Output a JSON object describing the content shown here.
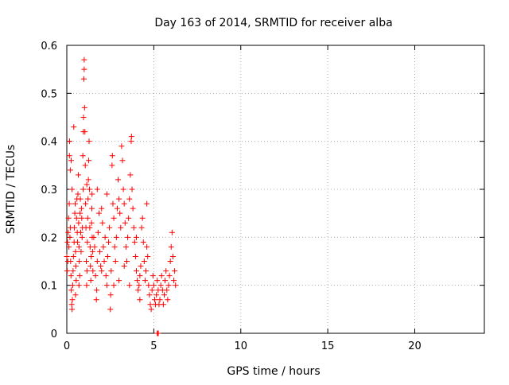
{
  "chart_data": {
    "type": "scatter",
    "title": "Day 163 of 2014, SRMTID for receiver alba",
    "xlabel": "GPS time / hours",
    "ylabel": "SRMTID / TECUs",
    "xlim": [
      0,
      24
    ],
    "ylim": [
      0,
      0.6
    ],
    "xticks": [
      0,
      5,
      10,
      15,
      20
    ],
    "xtick_labels": [
      "0",
      "5",
      "10",
      "15",
      "20"
    ],
    "yticks": [
      0,
      0.1,
      0.2,
      0.3,
      0.4,
      0.5,
      0.6
    ],
    "ytick_labels": [
      "0",
      "0.1",
      "0.2",
      "0.3",
      "0.4",
      "0.5",
      "0.6"
    ],
    "grid": true,
    "marker": "+",
    "series": [
      {
        "name": "SRMTID",
        "color": "#ff0000",
        "points": [
          [
            0.0,
            0.16
          ],
          [
            0.02,
            0.13
          ],
          [
            0.04,
            0.19
          ],
          [
            0.06,
            0.15
          ],
          [
            0.08,
            0.21
          ],
          [
            0.1,
            0.24
          ],
          [
            0.12,
            0.18
          ],
          [
            0.14,
            0.27
          ],
          [
            0.15,
            0.37
          ],
          [
            0.16,
            0.4
          ],
          [
            0.18,
            0.2
          ],
          [
            0.2,
            0.22
          ],
          [
            0.2,
            0.34
          ],
          [
            0.22,
            0.15
          ],
          [
            0.24,
            0.12
          ],
          [
            0.25,
            0.36
          ],
          [
            0.26,
            0.09
          ],
          [
            0.28,
            0.06
          ],
          [
            0.3,
            0.05
          ],
          [
            0.32,
            0.07
          ],
          [
            0.34,
            0.1
          ],
          [
            0.36,
            0.13
          ],
          [
            0.38,
            0.16
          ],
          [
            0.4,
            0.43
          ],
          [
            0.42,
            0.19
          ],
          [
            0.44,
            0.22
          ],
          [
            0.46,
            0.25
          ],
          [
            0.48,
            0.27
          ],
          [
            0.5,
            0.17
          ],
          [
            0.52,
            0.14
          ],
          [
            0.54,
            0.11
          ],
          [
            0.56,
            0.24
          ],
          [
            0.58,
            0.28
          ],
          [
            0.6,
            0.21
          ],
          [
            0.62,
            0.19
          ],
          [
            0.64,
            0.29
          ],
          [
            0.66,
            0.33
          ],
          [
            0.68,
            0.23
          ],
          [
            0.7,
            0.18
          ],
          [
            0.72,
            0.15
          ],
          [
            0.74,
            0.12
          ],
          [
            0.76,
            0.25
          ],
          [
            0.78,
            0.28
          ],
          [
            0.8,
            0.21
          ],
          [
            0.82,
            0.17
          ],
          [
            0.84,
            0.26
          ],
          [
            0.86,
            0.24
          ],
          [
            0.88,
            0.2
          ],
          [
            0.9,
            0.22
          ],
          [
            0.92,
            0.37
          ],
          [
            0.94,
            0.3
          ],
          [
            0.95,
            0.42
          ],
          [
            0.96,
            0.45
          ],
          [
            0.98,
            0.53
          ],
          [
            1.0,
            0.55
          ],
          [
            1.0,
            0.57
          ],
          [
            1.02,
            0.47
          ],
          [
            1.04,
            0.42
          ],
          [
            1.06,
            0.35
          ],
          [
            1.08,
            0.27
          ],
          [
            1.1,
            0.22
          ],
          [
            1.12,
            0.15
          ],
          [
            1.14,
            0.1
          ],
          [
            1.16,
            0.13
          ],
          [
            1.18,
            0.19
          ],
          [
            1.2,
            0.24
          ],
          [
            1.22,
            0.28
          ],
          [
            1.24,
            0.32
          ],
          [
            1.26,
            0.36
          ],
          [
            1.28,
            0.4
          ],
          [
            1.3,
            0.3
          ],
          [
            1.32,
            0.22
          ],
          [
            1.34,
            0.18
          ],
          [
            1.36,
            0.14
          ],
          [
            1.38,
            0.11
          ],
          [
            1.4,
            0.16
          ],
          [
            1.42,
            0.23
          ],
          [
            1.44,
            0.26
          ],
          [
            1.46,
            0.2
          ],
          [
            1.48,
            0.17
          ],
          [
            1.5,
            0.13
          ],
          [
            1.55,
            0.2
          ],
          [
            1.6,
            0.18
          ],
          [
            1.65,
            0.12
          ],
          [
            1.7,
            0.07
          ],
          [
            1.72,
            0.09
          ],
          [
            1.75,
            0.15
          ],
          [
            1.8,
            0.21
          ],
          [
            1.85,
            0.25
          ],
          [
            1.9,
            0.17
          ],
          [
            1.95,
            0.14
          ],
          [
            2.0,
            0.26
          ],
          [
            2.05,
            0.23
          ],
          [
            2.1,
            0.18
          ],
          [
            2.15,
            0.15
          ],
          [
            2.2,
            0.2
          ],
          [
            2.25,
            0.12
          ],
          [
            2.3,
            0.1
          ],
          [
            2.35,
            0.16
          ],
          [
            2.4,
            0.19
          ],
          [
            2.45,
            0.22
          ],
          [
            2.5,
            0.05
          ],
          [
            2.52,
            0.08
          ],
          [
            2.55,
            0.13
          ],
          [
            2.6,
            0.35
          ],
          [
            2.62,
            0.37
          ],
          [
            2.65,
            0.27
          ],
          [
            2.7,
            0.24
          ],
          [
            2.75,
            0.18
          ],
          [
            2.8,
            0.15
          ],
          [
            2.85,
            0.2
          ],
          [
            2.9,
            0.26
          ],
          [
            2.95,
            0.32
          ],
          [
            3.0,
            0.28
          ],
          [
            3.05,
            0.25
          ],
          [
            3.1,
            0.22
          ],
          [
            3.15,
            0.39
          ],
          [
            3.2,
            0.36
          ],
          [
            3.25,
            0.3
          ],
          [
            3.3,
            0.27
          ],
          [
            3.35,
            0.23
          ],
          [
            3.4,
            0.18
          ],
          [
            3.45,
            0.15
          ],
          [
            3.5,
            0.2
          ],
          [
            3.55,
            0.24
          ],
          [
            3.6,
            0.28
          ],
          [
            3.65,
            0.33
          ],
          [
            3.7,
            0.4
          ],
          [
            3.72,
            0.41
          ],
          [
            3.75,
            0.3
          ],
          [
            3.8,
            0.26
          ],
          [
            3.85,
            0.22
          ],
          [
            3.9,
            0.19
          ],
          [
            3.95,
            0.16
          ],
          [
            4.0,
            0.13
          ],
          [
            4.05,
            0.11
          ],
          [
            4.1,
            0.09
          ],
          [
            4.15,
            0.1
          ],
          [
            4.2,
            0.12
          ],
          [
            4.25,
            0.14
          ],
          [
            4.3,
            0.22
          ],
          [
            4.35,
            0.24
          ],
          [
            4.4,
            0.19
          ],
          [
            4.45,
            0.15
          ],
          [
            4.5,
            0.11
          ],
          [
            4.55,
            0.13
          ],
          [
            4.6,
            0.18
          ],
          [
            4.65,
            0.16
          ],
          [
            4.7,
            0.1
          ],
          [
            4.75,
            0.08
          ],
          [
            4.8,
            0.06
          ],
          [
            4.85,
            0.05
          ],
          [
            4.9,
            0.09
          ],
          [
            4.95,
            0.12
          ],
          [
            5.0,
            0.1
          ],
          [
            5.05,
            0.07
          ],
          [
            5.1,
            0.06
          ],
          [
            5.15,
            0.08
          ],
          [
            5.2,
            0.11
          ],
          [
            5.25,
            0.09
          ],
          [
            5.3,
            0.06
          ],
          [
            5.35,
            0.07
          ],
          [
            5.4,
            0.1
          ],
          [
            5.45,
            0.12
          ],
          [
            5.5,
            0.09
          ],
          [
            5.55,
            0.06
          ],
          [
            5.6,
            0.08
          ],
          [
            5.65,
            0.11
          ],
          [
            5.7,
            0.13
          ],
          [
            5.75,
            0.09
          ],
          [
            5.8,
            0.07
          ],
          [
            5.85,
            0.1
          ],
          [
            5.9,
            0.12
          ],
          [
            5.95,
            0.15
          ],
          [
            6.0,
            0.18
          ],
          [
            6.05,
            0.21
          ],
          [
            6.1,
            0.16
          ],
          [
            6.15,
            0.11
          ],
          [
            6.2,
            0.13
          ],
          [
            6.25,
            0.1
          ],
          [
            0.3,
            0.3
          ],
          [
            0.5,
            0.08
          ],
          [
            0.7,
            0.1
          ],
          [
            1.15,
            0.31
          ],
          [
            1.45,
            0.29
          ],
          [
            1.75,
            0.3
          ],
          [
            2.0,
            0.13
          ],
          [
            2.3,
            0.29
          ],
          [
            2.7,
            0.1
          ],
          [
            3.0,
            0.11
          ],
          [
            3.3,
            0.14
          ],
          [
            3.6,
            0.1
          ],
          [
            4.0,
            0.2
          ],
          [
            4.2,
            0.07
          ],
          [
            4.6,
            0.27
          ],
          [
            5.2,
            0.0
          ],
          [
            5.23,
            0.0
          ],
          [
            5.26,
            0.0
          ]
        ]
      }
    ]
  }
}
